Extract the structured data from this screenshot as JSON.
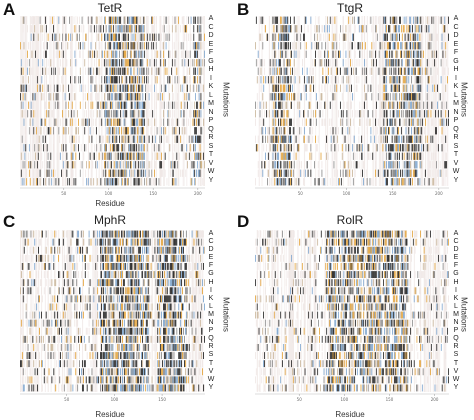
{
  "figure": {
    "amino_acids": [
      "A",
      "C",
      "D",
      "E",
      "F",
      "G",
      "H",
      "I",
      "K",
      "L",
      "M",
      "N",
      "P",
      "Q",
      "R",
      "S",
      "T",
      "V",
      "W",
      "Y"
    ],
    "xlabel": "Residue",
    "ylabel": "Mutations",
    "colors": {
      "tolerated_light": "#efe7e5",
      "beneficial": "#e3a33a",
      "neutral_blue": "#7ea6cf",
      "deleterious": "#222222",
      "intermediate": "#8c8c8c",
      "tan": "#c9b59a"
    }
  },
  "chart_data": [
    {
      "type": "heatmap",
      "panel": "A",
      "title": "TetR",
      "xlabel": "Residue",
      "ylabel": "Mutations",
      "rows": [
        "A",
        "C",
        "D",
        "E",
        "F",
        "G",
        "H",
        "I",
        "K",
        "L",
        "M",
        "N",
        "P",
        "Q",
        "R",
        "S",
        "T",
        "V",
        "W",
        "Y"
      ],
      "xlim": [
        1,
        207
      ],
      "x_ticks": [
        "50",
        "100",
        "150",
        "200"
      ],
      "legend": "none",
      "density": 0.45,
      "hot_zones": [
        [
          95,
          140
        ],
        [
          195,
          203
        ]
      ]
    },
    {
      "type": "heatmap",
      "panel": "B",
      "title": "TtgR",
      "xlabel": "Residue",
      "ylabel": "Mutations",
      "rows": [
        "A",
        "C",
        "D",
        "E",
        "F",
        "G",
        "H",
        "I",
        "K",
        "L",
        "M",
        "N",
        "P",
        "Q",
        "R",
        "S",
        "T",
        "V",
        "W",
        "Y"
      ],
      "xlim": [
        1,
        210
      ],
      "x_ticks": [
        "50",
        "100",
        "150",
        "200"
      ],
      "legend": "none",
      "density": 0.42,
      "hot_zones": [
        [
          20,
          40
        ],
        [
          140,
          180
        ]
      ]
    },
    {
      "type": "heatmap",
      "panel": "C",
      "title": "MphR",
      "xlabel": "Residue",
      "ylabel": "Mutations",
      "rows": [
        "A",
        "C",
        "D",
        "E",
        "F",
        "G",
        "H",
        "I",
        "K",
        "L",
        "M",
        "N",
        "P",
        "Q",
        "R",
        "S",
        "T",
        "V",
        "W",
        "Y"
      ],
      "xlim": [
        1,
        194
      ],
      "x_ticks": [
        "50",
        "100",
        "150"
      ],
      "legend": "none",
      "density": 0.5,
      "hot_zones": [
        [
          85,
          135
        ],
        [
          145,
          175
        ]
      ]
    },
    {
      "type": "heatmap",
      "panel": "D",
      "title": "RolR",
      "xlabel": "Residue",
      "ylabel": "Mutations",
      "rows": [
        "A",
        "C",
        "D",
        "E",
        "F",
        "G",
        "H",
        "I",
        "K",
        "L",
        "M",
        "N",
        "P",
        "Q",
        "R",
        "S",
        "T",
        "V",
        "W",
        "Y"
      ],
      "xlim": [
        1,
        215
      ],
      "x_ticks": [
        "50",
        "100",
        "150",
        "200"
      ],
      "legend": "none",
      "density": 0.44,
      "hot_zones": [
        [
          80,
          170
        ]
      ]
    }
  ]
}
